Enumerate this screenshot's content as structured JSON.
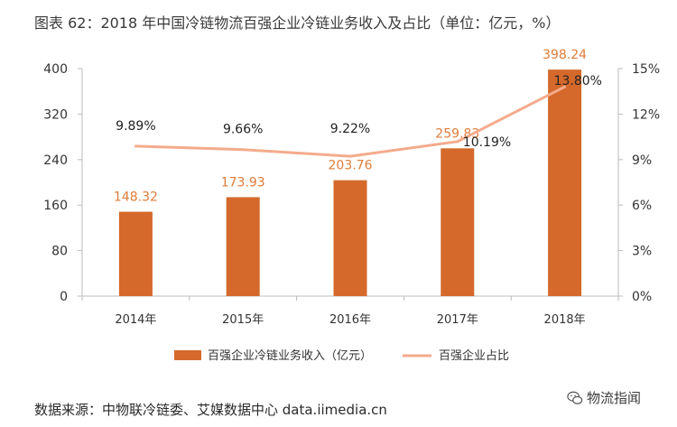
{
  "title": "图表 62：2018 年中国冷链物流百强企业冷链业务收入及占比（单位：亿元，%）",
  "source": "数据来源：中物联冷链委、艾媒数据中心 data.iimedia.cn",
  "watermark": "物流指闻",
  "colors": {
    "bar": "#d4692b",
    "bar_label": "#e07b39",
    "line": "#f4ab8c",
    "axis": "#bbbbbb"
  },
  "chart_data": {
    "type": "bar",
    "categories": [
      "2014年",
      "2015年",
      "2016年",
      "2017年",
      "2018年"
    ],
    "series": [
      {
        "name": "百强企业冷链业务收入（亿元）",
        "type": "bar",
        "axis": "left",
        "values": [
          148.32,
          173.93,
          203.76,
          259.83,
          398.24
        ],
        "labels": [
          "148.32",
          "173.93",
          "203.76",
          "259.83",
          "398.24"
        ]
      },
      {
        "name": "百强企业占比",
        "type": "line",
        "axis": "right",
        "values": [
          9.89,
          9.66,
          9.22,
          10.19,
          13.8
        ],
        "labels": [
          "9.89%",
          "9.66%",
          "9.22%",
          "10.19%",
          "13.80%"
        ]
      }
    ],
    "y_left": {
      "ylim": [
        0,
        400
      ],
      "ticks": [
        "0",
        "80",
        "160",
        "240",
        "320",
        "400"
      ]
    },
    "y_right": {
      "ylim": [
        0,
        15
      ],
      "ticks": [
        "0%",
        "3%",
        "6%",
        "9%",
        "12%",
        "15%"
      ]
    },
    "legend": "bottom"
  }
}
